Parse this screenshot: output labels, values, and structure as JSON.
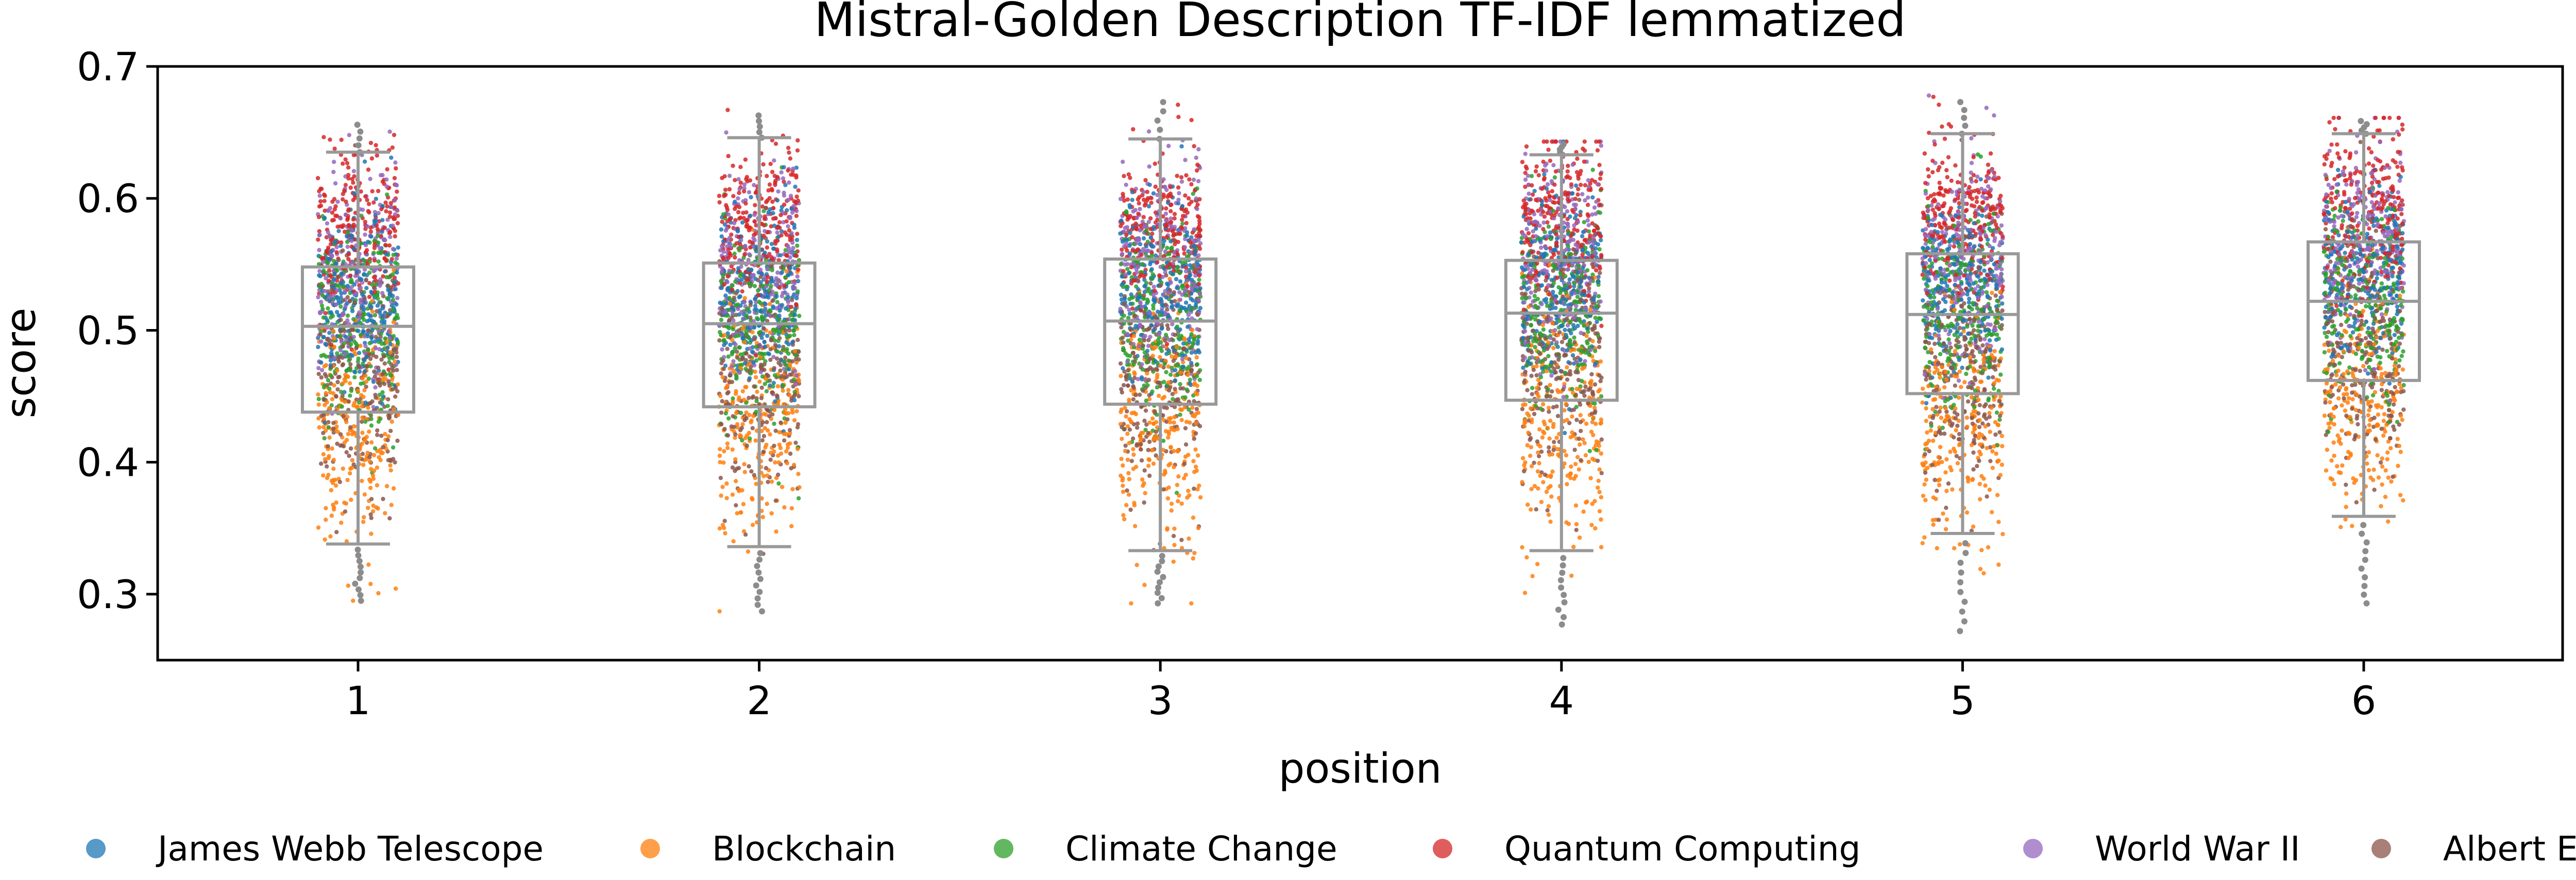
{
  "chart_data": {
    "type": "box-strip",
    "title": "Mistral-Golden Description TF-IDF lemmatized",
    "xlabel": "position",
    "ylabel": "score",
    "ylim": [
      0.25,
      0.7
    ],
    "yticks": [
      "0.3",
      "0.4",
      "0.5",
      "0.6",
      "0.7"
    ],
    "yticks_values": [
      0.3,
      0.4,
      0.5,
      0.6,
      0.7
    ],
    "categories": [
      "1",
      "2",
      "3",
      "4",
      "5",
      "6"
    ],
    "grid": false,
    "legend_position": "bottom",
    "box_color": "#999999",
    "boxes": [
      {
        "position": "1",
        "whislo": 0.338,
        "q1": 0.438,
        "median": 0.503,
        "q3": 0.548,
        "whishi": 0.635,
        "data_min": 0.295,
        "data_max": 0.661
      },
      {
        "position": "2",
        "whislo": 0.336,
        "q1": 0.442,
        "median": 0.505,
        "q3": 0.551,
        "whishi": 0.646,
        "data_min": 0.287,
        "data_max": 0.667
      },
      {
        "position": "3",
        "whislo": 0.333,
        "q1": 0.444,
        "median": 0.507,
        "q3": 0.554,
        "whishi": 0.645,
        "data_min": 0.293,
        "data_max": 0.68
      },
      {
        "position": "4",
        "whislo": 0.333,
        "q1": 0.447,
        "median": 0.513,
        "q3": 0.553,
        "whishi": 0.633,
        "data_min": 0.277,
        "data_max": 0.643
      },
      {
        "position": "5",
        "whislo": 0.346,
        "q1": 0.452,
        "median": 0.512,
        "q3": 0.558,
        "whishi": 0.649,
        "data_min": 0.272,
        "data_max": 0.679
      },
      {
        "position": "6",
        "whislo": 0.359,
        "q1": 0.462,
        "median": 0.522,
        "q3": 0.567,
        "whishi": 0.649,
        "data_min": 0.293,
        "data_max": 0.661
      }
    ],
    "series": [
      {
        "name": "James Webb Telescope",
        "color": "#1f77b4",
        "center": 0.525,
        "spread": 0.035
      },
      {
        "name": "Blockchain",
        "color": "#ff7f0e",
        "center": 0.425,
        "spread": 0.045
      },
      {
        "name": "Climate Change",
        "color": "#2ca02c",
        "center": 0.505,
        "spread": 0.04
      },
      {
        "name": "Quantum Computing",
        "color": "#d62728",
        "center": 0.575,
        "spread": 0.03
      },
      {
        "name": "World War II",
        "color": "#9467bd",
        "center": 0.545,
        "spread": 0.04
      },
      {
        "name": "Albert Einstein",
        "color": "#8c564b",
        "center": 0.465,
        "spread": 0.045
      }
    ]
  }
}
